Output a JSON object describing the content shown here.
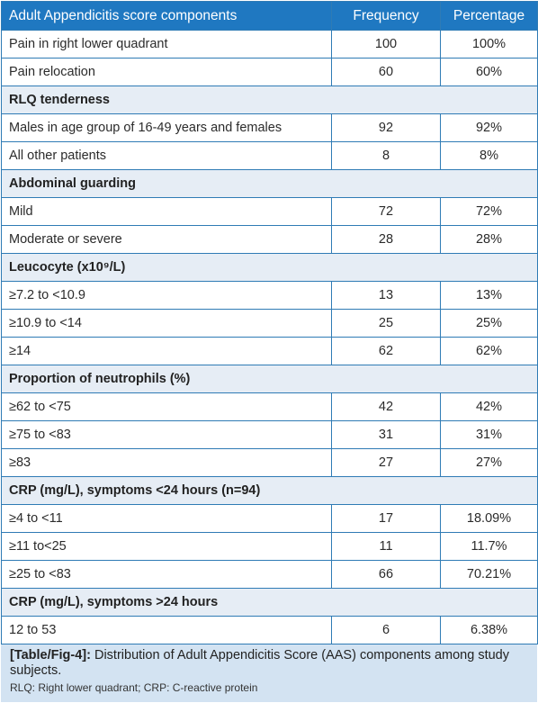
{
  "table": {
    "headers": [
      "Adult Appendicitis score components",
      "Frequency",
      "Percentage"
    ],
    "rows": [
      {
        "type": "row",
        "label": "Pain in right lower quadrant",
        "frequency": "100",
        "percentage": "100%"
      },
      {
        "type": "row",
        "label": "Pain relocation",
        "frequency": "60",
        "percentage": "60%"
      },
      {
        "type": "section",
        "label": "RLQ tenderness"
      },
      {
        "type": "row",
        "label": "Males in age group of 16-49 years and females",
        "frequency": "92",
        "percentage": "92%"
      },
      {
        "type": "row",
        "label": "All other patients",
        "frequency": "8",
        "percentage": "8%"
      },
      {
        "type": "section",
        "label": "Abdominal guarding"
      },
      {
        "type": "row",
        "label": "Mild",
        "frequency": "72",
        "percentage": "72%"
      },
      {
        "type": "row",
        "label": "Moderate or severe",
        "frequency": "28",
        "percentage": "28%"
      },
      {
        "type": "section",
        "label": "Leucocyte (x10⁹/L)"
      },
      {
        "type": "row",
        "label": "≥7.2 to <10.9",
        "frequency": "13",
        "percentage": "13%"
      },
      {
        "type": "row",
        "label": "≥10.9 to <14",
        "frequency": "25",
        "percentage": "25%"
      },
      {
        "type": "row",
        "label": "≥14",
        "frequency": "62",
        "percentage": "62%"
      },
      {
        "type": "section",
        "label": "Proportion of neutrophils (%)"
      },
      {
        "type": "row",
        "label": "≥62 to <75",
        "frequency": "42",
        "percentage": "42%"
      },
      {
        "type": "row",
        "label": "≥75 to <83",
        "frequency": "31",
        "percentage": "31%"
      },
      {
        "type": "row",
        "label": "≥83",
        "frequency": "27",
        "percentage": "27%"
      },
      {
        "type": "section",
        "label": "CRP (mg/L), symptoms <24 hours (n=94)"
      },
      {
        "type": "row",
        "label": "≥4 to <11",
        "frequency": "17",
        "percentage": "18.09%"
      },
      {
        "type": "row",
        "label": "≥11 to<25",
        "frequency": "11",
        "percentage": "11.7%"
      },
      {
        "type": "row",
        "label": "≥25 to <83",
        "frequency": "66",
        "percentage": "70.21%"
      },
      {
        "type": "section",
        "label": "CRP (mg/L), symptoms >24 hours"
      },
      {
        "type": "row",
        "label": "12 to 53",
        "frequency": "6",
        "percentage": "6.38%"
      }
    ]
  },
  "caption": {
    "label": "[Table/Fig-4]:",
    "text": " Distribution of Adult Appendicitis Score (AAS) components among study subjects.",
    "note": "RLQ: Right lower quadrant; CRP: C-reactive protein"
  },
  "colors": {
    "header_bg": "#1f78c1",
    "section_bg": "#e6edf5",
    "caption_bg": "#d3e3f2",
    "border": "#2f7bb5"
  }
}
